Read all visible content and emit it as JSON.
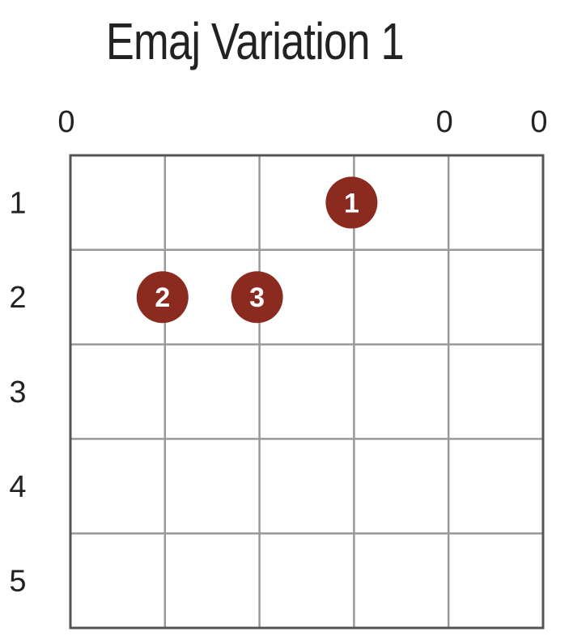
{
  "title": "Emaj Variation 1",
  "colors": {
    "dot_fill": "#8b2a1f",
    "dot_text": "#ffffff",
    "grid": "#999999",
    "border": "#555555",
    "text": "#222222"
  },
  "diagram": {
    "string_count": 6,
    "fret_count": 5,
    "fret_labels": [
      "1",
      "2",
      "3",
      "4",
      "5"
    ],
    "open_strings": [
      {
        "string": 1,
        "label": "0"
      },
      {
        "string": 5,
        "label": "0"
      },
      {
        "string": 6,
        "label": "0"
      }
    ],
    "fingers": [
      {
        "string": 4,
        "fret": 1,
        "label": "1"
      },
      {
        "string": 2,
        "fret": 2,
        "label": "2"
      },
      {
        "string": 3,
        "fret": 2,
        "label": "3"
      }
    ]
  }
}
